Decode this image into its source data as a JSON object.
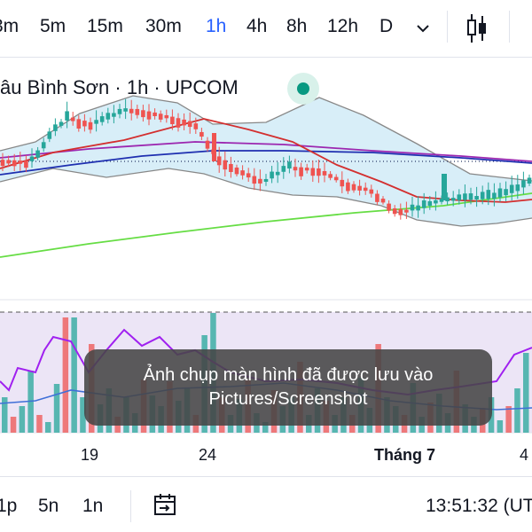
{
  "timeframes": [
    "3m",
    "5m",
    "15m",
    "30m",
    "1h",
    "4h",
    "8h",
    "12h",
    "D"
  ],
  "active_timeframe": "1h",
  "title": "âu Bình Sơn · 1h · UPCOM",
  "icons": {
    "dropdown": "chevron-down-icon",
    "chart_type": "candlestick-icon",
    "status": "market-open-dot-icon",
    "date_range": "calendar-arrow-icon"
  },
  "colors": {
    "up": "#26a69a",
    "down": "#ef5350",
    "ma_short": "#d32f2f",
    "ma_mid": "#1e2fb0",
    "ma_purple": "#9c27b0",
    "ma_long": "#66dd44",
    "bollinger_fill": "#d8eef8",
    "indicator_bg": "#ece5f6",
    "indicator_line": "#a020f0",
    "volume_ma": "#3f6fd8",
    "active_tab": "#2962ff"
  },
  "x_axis": {
    "labels": [
      "19",
      "24",
      "Tháng 7",
      "4"
    ],
    "month_label": "Tháng 7"
  },
  "bottom": {
    "ranges": [
      "1p",
      "5n",
      "1n"
    ],
    "clock": "13:51:32 (UT"
  },
  "toast": {
    "line1": "Ảnh chụp màn hình đã được lưu vào",
    "line2": "Pictures/Screenshot"
  }
}
